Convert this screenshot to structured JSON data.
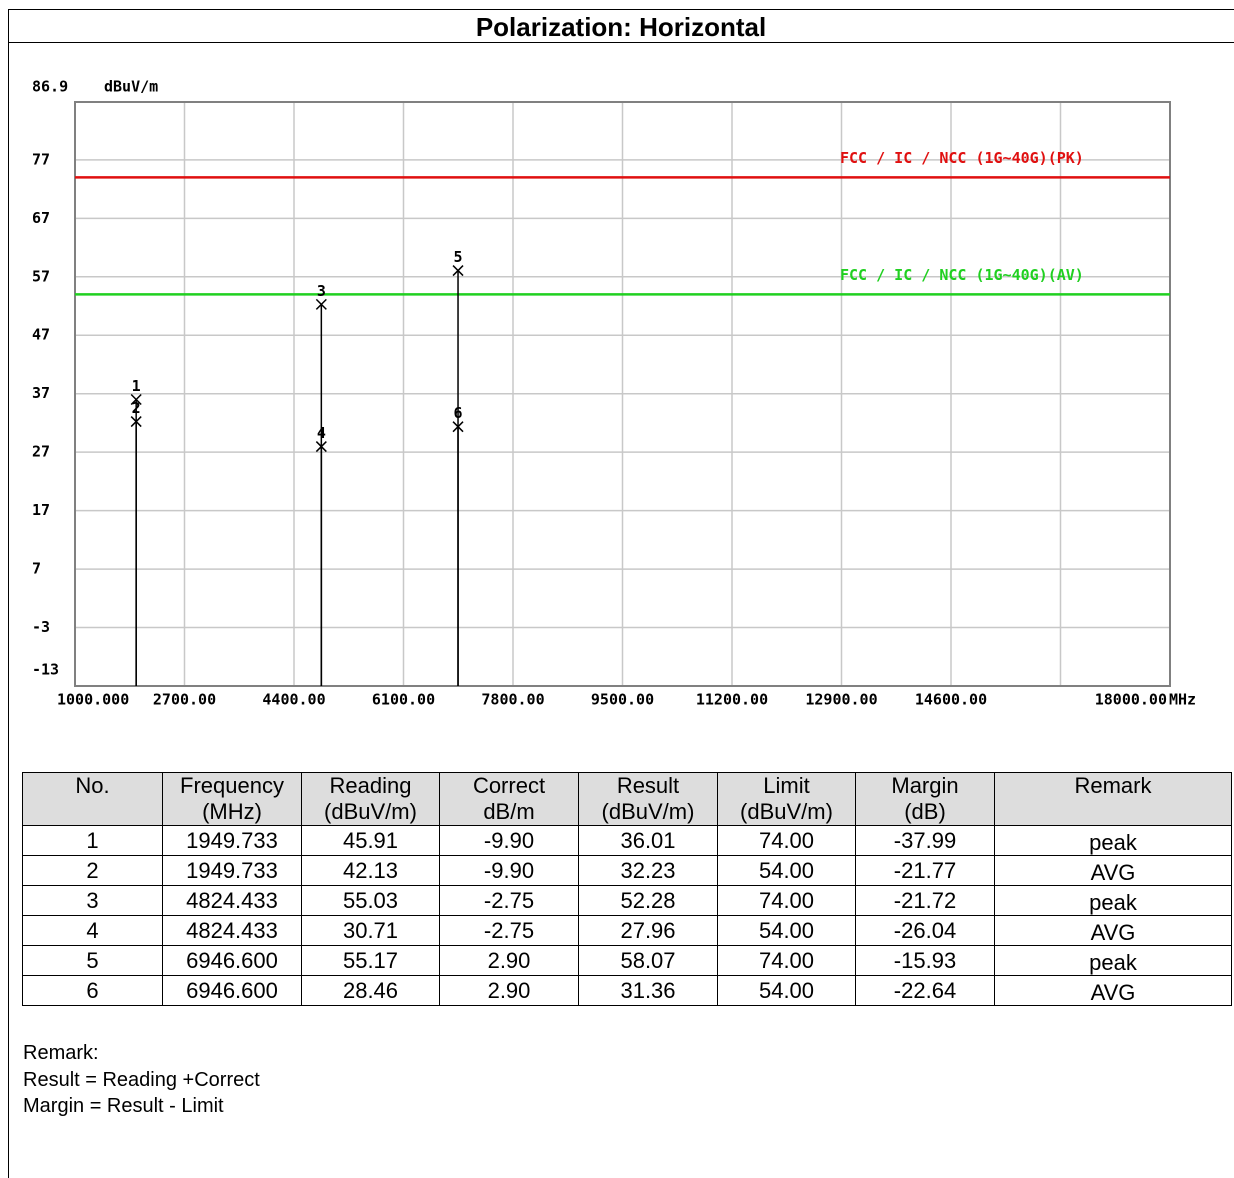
{
  "header": {
    "title": "Polarization: Horizontal"
  },
  "chart_data": {
    "type": "stem",
    "y_unit": "dBuV/m",
    "x_unit": "MHz",
    "xlim": [
      1000,
      18000
    ],
    "xticks": [
      {
        "value": 1000,
        "label": "1000.000"
      },
      {
        "value": 2700,
        "label": "2700.00"
      },
      {
        "value": 4400,
        "label": "4400.00"
      },
      {
        "value": 6100,
        "label": "6100.00"
      },
      {
        "value": 7800,
        "label": "7800.00"
      },
      {
        "value": 9500,
        "label": "9500.00"
      },
      {
        "value": 11200,
        "label": "11200.00"
      },
      {
        "value": 12900,
        "label": "12900.00"
      },
      {
        "value": 14600,
        "label": "14600.00"
      },
      {
        "value": 16300,
        "label": null
      },
      {
        "value": 18000,
        "label": "18000.00"
      }
    ],
    "ylim": [
      -13,
      86.9
    ],
    "yticks": [
      -13,
      -3,
      7,
      17,
      27,
      37,
      47,
      57,
      67,
      77,
      86.9
    ],
    "grid": true,
    "limits": [
      {
        "name": "FCC / IC / NCC (1G~40G)(PK)",
        "value": 74,
        "color": "#e01010"
      },
      {
        "name": "FCC / IC / NCC (1G~40G)(AV)",
        "value": 54,
        "color": "#20d020"
      }
    ],
    "markers": {
      "labels": [
        "1",
        "2",
        "3",
        "4",
        "5",
        "6"
      ],
      "x": [
        1949.733,
        1949.733,
        4824.433,
        4824.433,
        6946.6,
        6946.6
      ],
      "values": [
        36.01,
        32.23,
        52.28,
        27.96,
        58.07,
        31.36
      ]
    }
  },
  "table": {
    "header_rows": [
      [
        "No.",
        "Frequency",
        "Reading",
        "Correct",
        "Result",
        "Limit",
        "Margin",
        "Remark"
      ],
      [
        null,
        "(MHz)",
        "(dBuV/m)",
        "dB/m",
        "(dBuV/m)",
        "(dBuV/m)",
        "(dB)",
        null
      ]
    ],
    "rows": [
      [
        "1",
        "1949.733",
        "45.91",
        "-9.90",
        "36.01",
        "74.00",
        "-37.99",
        "peak"
      ],
      [
        "2",
        "1949.733",
        "42.13",
        "-9.90",
        "32.23",
        "54.00",
        "-21.77",
        "AVG"
      ],
      [
        "3",
        "4824.433",
        "55.03",
        "-2.75",
        "52.28",
        "74.00",
        "-21.72",
        "peak"
      ],
      [
        "4",
        "4824.433",
        "30.71",
        "-2.75",
        "27.96",
        "54.00",
        "-26.04",
        "AVG"
      ],
      [
        "5",
        "6946.600",
        "55.17",
        "2.90",
        "58.07",
        "74.00",
        "-15.93",
        "peak"
      ],
      [
        "6",
        "6946.600",
        "28.46",
        "2.90",
        "31.36",
        "54.00",
        "-22.64",
        "AVG"
      ]
    ]
  },
  "notes": {
    "title": "Remark:",
    "lines": [
      "Result = Reading +Correct",
      "Margin = Result - Limit"
    ]
  }
}
